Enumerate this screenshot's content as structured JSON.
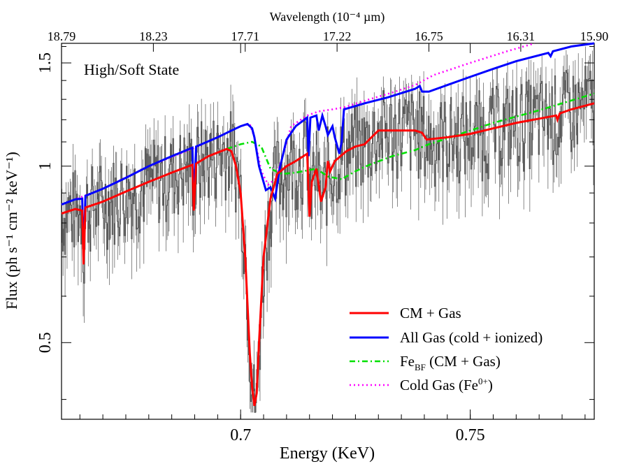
{
  "chart_data": {
    "type": "line",
    "annotation": "High/Soft State",
    "xlabel": "Energy (KeV)",
    "ylabel": "Flux (ph s⁻¹ cm⁻² keV⁻¹)",
    "top_xlabel": "Wavelength (10⁻⁴ µm)",
    "xlim": [
      0.661,
      0.777
    ],
    "ylim": [
      0.37,
      1.62
    ],
    "y_scale": "log",
    "x_ticks": [
      0.7,
      0.75
    ],
    "x_tick_labels": [
      "0.7",
      "0.75"
    ],
    "y_ticks": [
      0.5,
      1,
      1.5
    ],
    "y_tick_labels": [
      "0.5",
      "1",
      "1.5"
    ],
    "top_ticks": [
      {
        "x": 0.661,
        "label": "18.79"
      },
      {
        "x": 0.681,
        "label": "18.23"
      },
      {
        "x": 0.701,
        "label": "17.71"
      },
      {
        "x": 0.721,
        "label": "17.22"
      },
      {
        "x": 0.741,
        "label": "16.75"
      },
      {
        "x": 0.761,
        "label": "16.31"
      },
      {
        "x": 0.777,
        "label": "15.90"
      }
    ],
    "legend_position": "bottom-right",
    "series": [
      {
        "name": "CM + Gas",
        "color": "#ff0000",
        "style": "solid",
        "points": [
          [
            0.661,
            0.83
          ],
          [
            0.664,
            0.845
          ],
          [
            0.6655,
            0.84
          ],
          [
            0.6658,
            0.68
          ],
          [
            0.6662,
            0.85
          ],
          [
            0.67,
            0.87
          ],
          [
            0.675,
            0.905
          ],
          [
            0.68,
            0.94
          ],
          [
            0.685,
            0.975
          ],
          [
            0.6895,
            1.005
          ],
          [
            0.6898,
            0.84
          ],
          [
            0.6903,
            1.01
          ],
          [
            0.693,
            1.04
          ],
          [
            0.695,
            1.055
          ],
          [
            0.697,
            1.07
          ],
          [
            0.698,
            1.06
          ],
          [
            0.699,
            1.0
          ],
          [
            0.7,
            0.9
          ],
          [
            0.701,
            0.7
          ],
          [
            0.702,
            0.48
          ],
          [
            0.7025,
            0.42
          ],
          [
            0.703,
            0.39
          ],
          [
            0.7035,
            0.41
          ],
          [
            0.704,
            0.5
          ],
          [
            0.705,
            0.7
          ],
          [
            0.7065,
            0.88
          ],
          [
            0.708,
            0.97
          ],
          [
            0.71,
            1.0
          ],
          [
            0.712,
            1.02
          ],
          [
            0.7145,
            1.05
          ],
          [
            0.715,
            0.82
          ],
          [
            0.7155,
            0.94
          ],
          [
            0.7165,
            0.99
          ],
          [
            0.7175,
            0.87
          ],
          [
            0.7185,
            0.92
          ],
          [
            0.719,
            1.02
          ],
          [
            0.7195,
            0.98
          ],
          [
            0.7205,
            1.02
          ],
          [
            0.723,
            1.06
          ],
          [
            0.725,
            1.08
          ],
          [
            0.727,
            1.09
          ],
          [
            0.7285,
            1.12
          ],
          [
            0.73,
            1.15
          ],
          [
            0.735,
            1.15
          ],
          [
            0.738,
            1.15
          ],
          [
            0.7395,
            1.14
          ],
          [
            0.7405,
            1.11
          ],
          [
            0.745,
            1.12
          ],
          [
            0.75,
            1.135
          ],
          [
            0.755,
            1.16
          ],
          [
            0.76,
            1.185
          ],
          [
            0.765,
            1.205
          ],
          [
            0.7687,
            1.22
          ],
          [
            0.769,
            1.2
          ],
          [
            0.7695,
            1.23
          ],
          [
            0.772,
            1.25
          ],
          [
            0.777,
            1.28
          ]
        ]
      },
      {
        "name": "All Gas (cold + ionized)",
        "color": "#0000ff",
        "style": "solid",
        "points": [
          [
            0.661,
            0.86
          ],
          [
            0.664,
            0.878
          ],
          [
            0.6655,
            0.88
          ],
          [
            0.6658,
            0.7
          ],
          [
            0.6662,
            0.89
          ],
          [
            0.67,
            0.915
          ],
          [
            0.675,
            0.955
          ],
          [
            0.68,
            1.0
          ],
          [
            0.685,
            1.04
          ],
          [
            0.6895,
            1.075
          ],
          [
            0.6898,
            0.86
          ],
          [
            0.6903,
            1.08
          ],
          [
            0.695,
            1.12
          ],
          [
            0.698,
            1.15
          ],
          [
            0.7,
            1.17
          ],
          [
            0.7015,
            1.18
          ],
          [
            0.7025,
            1.16
          ],
          [
            0.703,
            1.12
          ],
          [
            0.704,
            1.0
          ],
          [
            0.7055,
            0.91
          ],
          [
            0.7065,
            0.92
          ],
          [
            0.7075,
            0.88
          ],
          [
            0.7085,
            0.99
          ],
          [
            0.71,
            1.11
          ],
          [
            0.712,
            1.17
          ],
          [
            0.7145,
            1.21
          ],
          [
            0.7148,
            1.04
          ],
          [
            0.7152,
            1.21
          ],
          [
            0.7165,
            1.22
          ],
          [
            0.717,
            1.15
          ],
          [
            0.7178,
            1.22
          ],
          [
            0.7185,
            1.17
          ],
          [
            0.719,
            1.13
          ],
          [
            0.72,
            1.17
          ],
          [
            0.7205,
            1.12
          ],
          [
            0.7215,
            1.05
          ],
          [
            0.722,
            1.1
          ],
          [
            0.7225,
            1.25
          ],
          [
            0.727,
            1.28
          ],
          [
            0.732,
            1.31
          ],
          [
            0.738,
            1.355
          ],
          [
            0.739,
            1.37
          ],
          [
            0.7395,
            1.34
          ],
          [
            0.741,
            1.34
          ],
          [
            0.745,
            1.375
          ],
          [
            0.75,
            1.42
          ],
          [
            0.755,
            1.465
          ],
          [
            0.76,
            1.51
          ],
          [
            0.767,
            1.56
          ],
          [
            0.7675,
            1.54
          ],
          [
            0.768,
            1.57
          ],
          [
            0.772,
            1.6
          ],
          [
            0.777,
            1.62
          ]
        ]
      },
      {
        "name": "FeBF (CM + Gas)",
        "color": "#00e000",
        "style": "dashdot",
        "points": [
          [
            0.697,
            1.07
          ],
          [
            0.7,
            1.09
          ],
          [
            0.7025,
            1.1
          ],
          [
            0.7045,
            1.08
          ],
          [
            0.7065,
            0.99
          ],
          [
            0.709,
            0.97
          ],
          [
            0.712,
            0.975
          ],
          [
            0.7165,
            0.99
          ],
          [
            0.719,
            0.96
          ],
          [
            0.722,
            0.95
          ],
          [
            0.725,
            0.98
          ],
          [
            0.728,
            1.005
          ],
          [
            0.733,
            1.04
          ],
          [
            0.738,
            1.065
          ],
          [
            0.741,
            1.09
          ],
          [
            0.745,
            1.115
          ],
          [
            0.75,
            1.15
          ],
          [
            0.755,
            1.185
          ],
          [
            0.76,
            1.215
          ],
          [
            0.765,
            1.245
          ],
          [
            0.77,
            1.28
          ],
          [
            0.777,
            1.33
          ]
        ]
      },
      {
        "name": "Cold Gas (Fe0+)",
        "color": "#ff00ff",
        "style": "dotted",
        "points": [
          [
            0.661,
            0.86
          ],
          [
            0.67,
            0.915
          ],
          [
            0.68,
            1.0
          ],
          [
            0.69,
            1.075
          ],
          [
            0.7,
            1.17
          ],
          [
            0.702,
            1.18
          ],
          [
            0.703,
            1.12
          ],
          [
            0.7045,
            0.98
          ],
          [
            0.706,
            0.93
          ],
          [
            0.7075,
            0.95
          ],
          [
            0.709,
            1.03
          ],
          [
            0.711,
            1.17
          ],
          [
            0.7145,
            1.22
          ],
          [
            0.717,
            1.24
          ],
          [
            0.72,
            1.25
          ],
          [
            0.7225,
            1.26
          ],
          [
            0.728,
            1.3
          ],
          [
            0.733,
            1.335
          ],
          [
            0.738,
            1.375
          ],
          [
            0.742,
            1.43
          ],
          [
            0.75,
            1.5
          ],
          [
            0.758,
            1.57
          ],
          [
            0.764,
            1.62
          ]
        ]
      }
    ]
  }
}
